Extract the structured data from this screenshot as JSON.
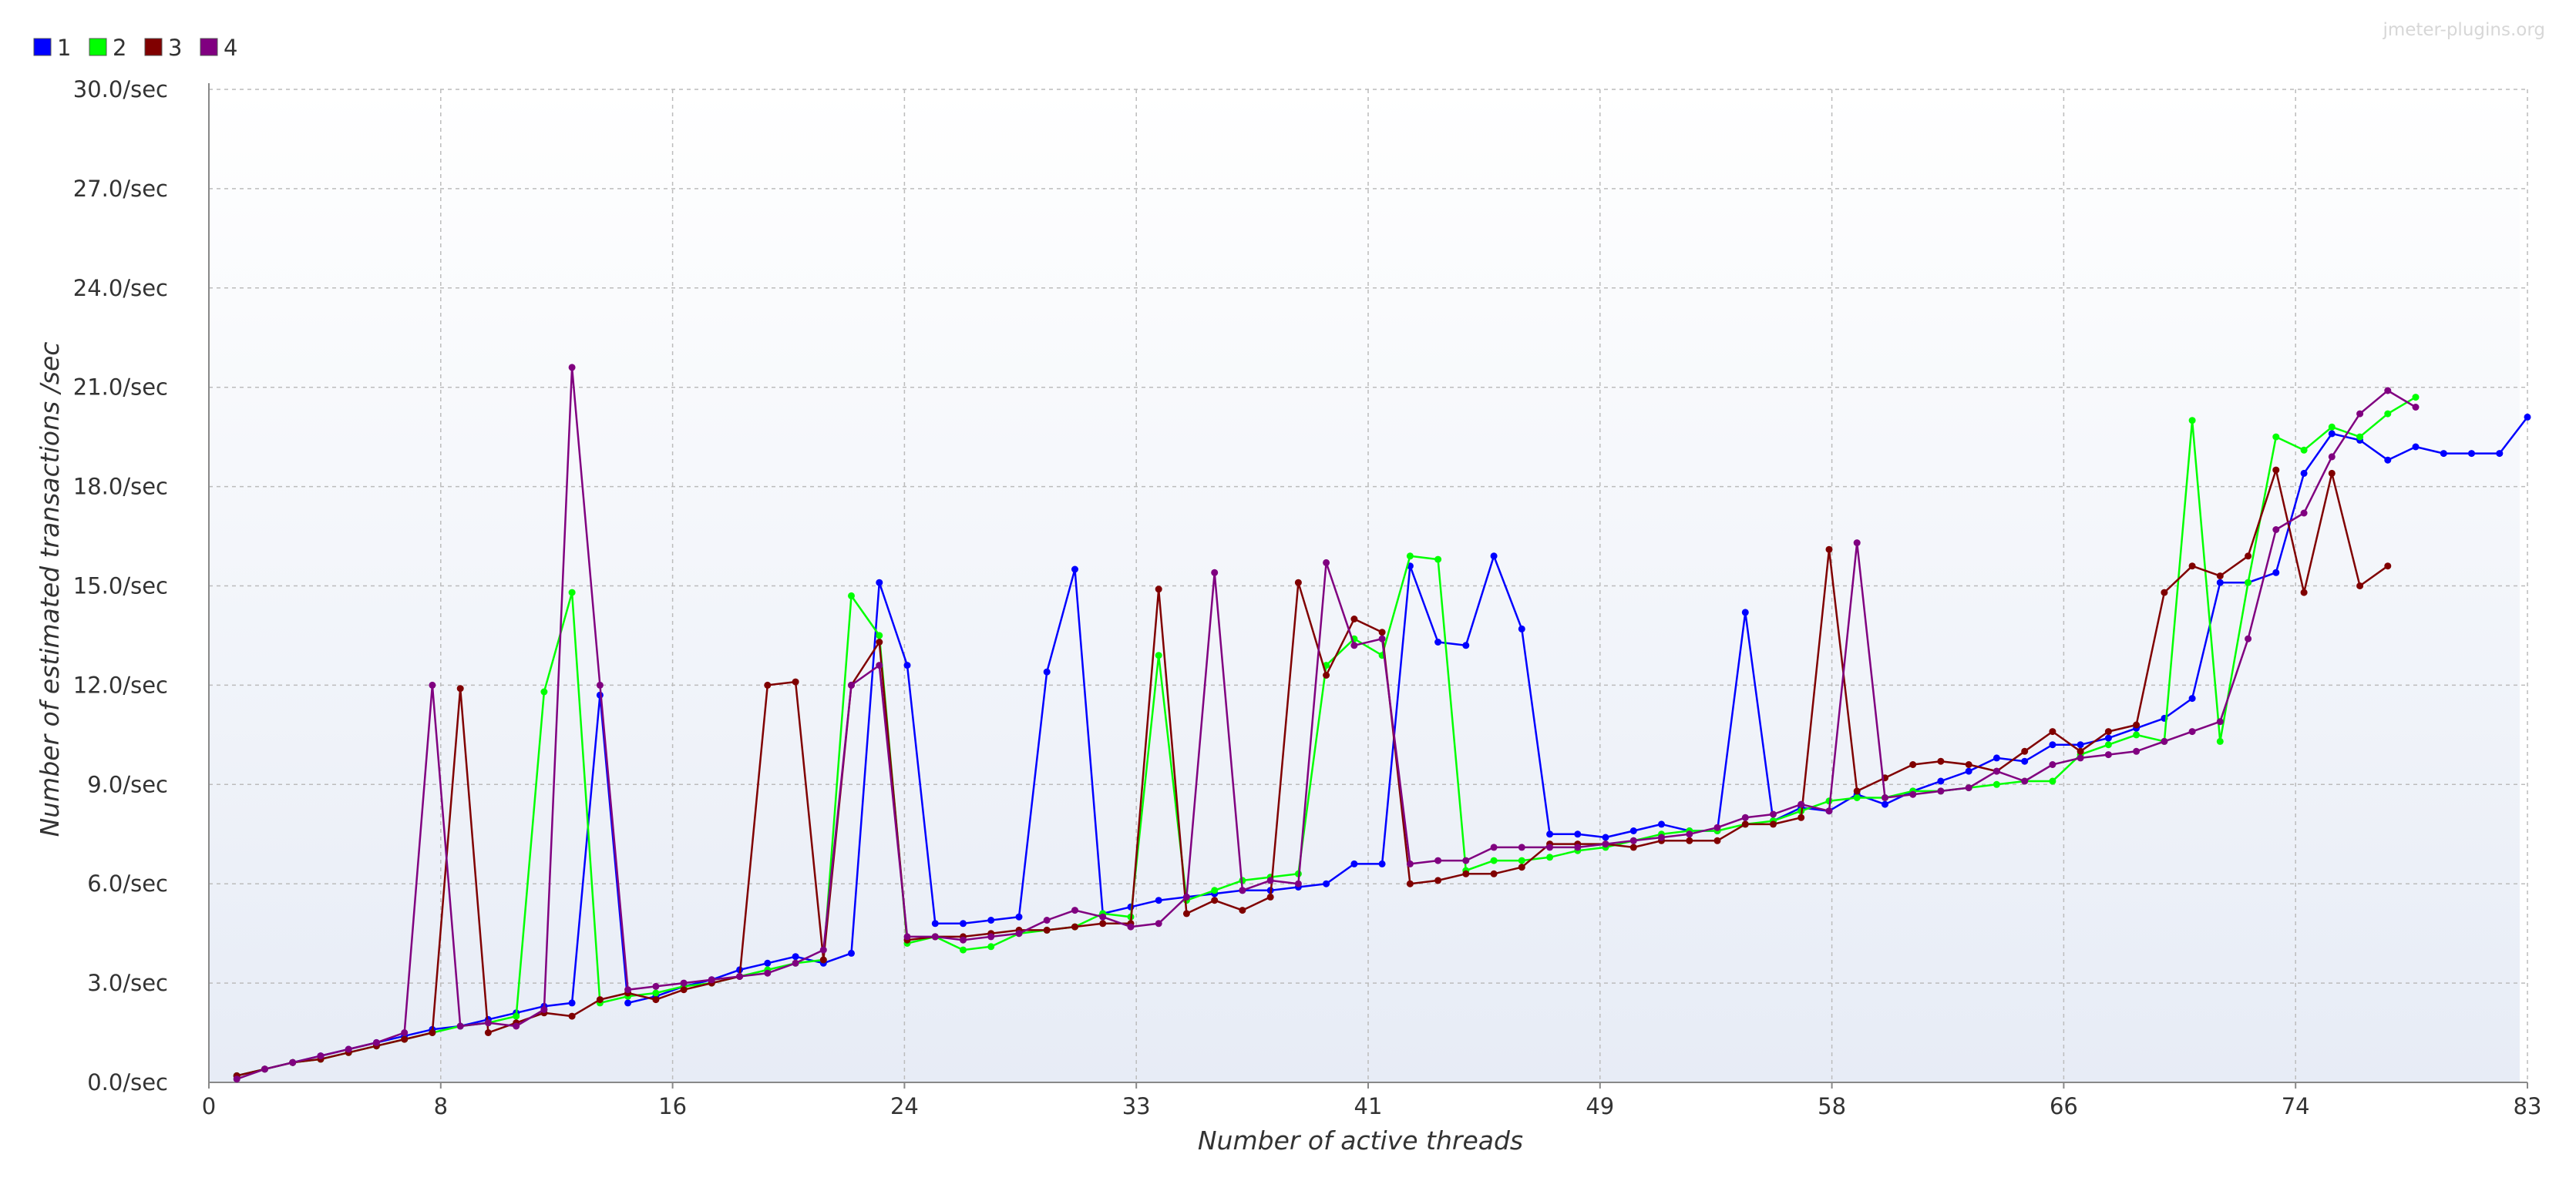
{
  "watermark": "jmeter-plugins.org",
  "chart_data": {
    "type": "line",
    "xlabel": "Number of active threads",
    "ylabel": "Number of estimated transactions /sec",
    "xlim": [
      0,
      83
    ],
    "ylim": [
      0,
      30
    ],
    "x_ticks": [
      "0",
      "8",
      "16",
      "24",
      "33",
      "41",
      "49",
      "58",
      "66",
      "74",
      "83"
    ],
    "y_ticks": [
      "0.0/sec",
      "3.0/sec",
      "6.0/sec",
      "9.0/sec",
      "12.0/sec",
      "15.0/sec",
      "18.0/sec",
      "21.0/sec",
      "24.0/sec",
      "27.0/sec",
      "30.0/sec"
    ],
    "grid": true,
    "legend_position": "top-left",
    "series": [
      {
        "name": "1",
        "color": "#0000ff",
        "points": [
          [
            1,
            0.2
          ],
          [
            2,
            0.4
          ],
          [
            3,
            0.6
          ],
          [
            4,
            0.8
          ],
          [
            5,
            1.0
          ],
          [
            6,
            1.2
          ],
          [
            7,
            1.4
          ],
          [
            8,
            1.6
          ],
          [
            9,
            1.7
          ],
          [
            10,
            1.9
          ],
          [
            11,
            2.1
          ],
          [
            12,
            2.3
          ],
          [
            13,
            2.4
          ],
          [
            14,
            11.7
          ],
          [
            15,
            2.4
          ],
          [
            16,
            2.6
          ],
          [
            17,
            2.9
          ],
          [
            18,
            3.1
          ],
          [
            19,
            3.4
          ],
          [
            20,
            3.6
          ],
          [
            21,
            3.8
          ],
          [
            22,
            3.6
          ],
          [
            23,
            3.9
          ],
          [
            24,
            15.1
          ],
          [
            25,
            12.6
          ],
          [
            26,
            4.8
          ],
          [
            27,
            4.8
          ],
          [
            28,
            4.9
          ],
          [
            29,
            5.0
          ],
          [
            30,
            12.4
          ],
          [
            31,
            15.5
          ],
          [
            32,
            5.1
          ],
          [
            33,
            5.3
          ],
          [
            34,
            5.5
          ],
          [
            35,
            5.6
          ],
          [
            36,
            5.7
          ],
          [
            37,
            5.8
          ],
          [
            38,
            5.8
          ],
          [
            39,
            5.9
          ],
          [
            40,
            6.0
          ],
          [
            41,
            6.6
          ],
          [
            42,
            6.6
          ],
          [
            43,
            15.6
          ],
          [
            44,
            13.3
          ],
          [
            45,
            13.2
          ],
          [
            46,
            15.9
          ],
          [
            47,
            13.7
          ],
          [
            48,
            7.5
          ],
          [
            49,
            7.5
          ],
          [
            50,
            7.4
          ],
          [
            51,
            7.6
          ],
          [
            52,
            7.8
          ],
          [
            53,
            7.6
          ],
          [
            54,
            7.6
          ],
          [
            55,
            14.2
          ],
          [
            56,
            7.9
          ],
          [
            57,
            8.3
          ],
          [
            58,
            8.2
          ],
          [
            59,
            8.7
          ],
          [
            60,
            8.4
          ],
          [
            61,
            8.8
          ],
          [
            62,
            9.1
          ],
          [
            63,
            9.4
          ],
          [
            64,
            9.8
          ],
          [
            65,
            9.7
          ],
          [
            66,
            10.2
          ],
          [
            67,
            10.2
          ],
          [
            68,
            10.4
          ],
          [
            69,
            10.7
          ],
          [
            70,
            11.0
          ],
          [
            71,
            11.6
          ],
          [
            72,
            15.1
          ],
          [
            73,
            15.1
          ],
          [
            74,
            15.4
          ],
          [
            75,
            18.4
          ],
          [
            76,
            19.6
          ],
          [
            77,
            19.4
          ],
          [
            78,
            18.8
          ],
          [
            79,
            19.2
          ],
          [
            80,
            19.0
          ],
          [
            81,
            19.0
          ],
          [
            82,
            19.0
          ],
          [
            83,
            20.1
          ]
        ]
      },
      {
        "name": "2",
        "color": "#00ff00",
        "points": [
          [
            1,
            0.2
          ],
          [
            2,
            0.4
          ],
          [
            3,
            0.6
          ],
          [
            4,
            0.7
          ],
          [
            5,
            0.9
          ],
          [
            6,
            1.1
          ],
          [
            7,
            1.3
          ],
          [
            8,
            1.5
          ],
          [
            9,
            1.7
          ],
          [
            10,
            1.8
          ],
          [
            11,
            2.0
          ],
          [
            12,
            11.8
          ],
          [
            13,
            14.8
          ],
          [
            14,
            2.4
          ],
          [
            15,
            2.6
          ],
          [
            16,
            2.7
          ],
          [
            17,
            2.9
          ],
          [
            18,
            3.0
          ],
          [
            19,
            3.2
          ],
          [
            20,
            3.4
          ],
          [
            21,
            3.6
          ],
          [
            22,
            3.7
          ],
          [
            23,
            14.7
          ],
          [
            24,
            13.5
          ],
          [
            25,
            4.2
          ],
          [
            26,
            4.4
          ],
          [
            27,
            4.0
          ],
          [
            28,
            4.1
          ],
          [
            29,
            4.5
          ],
          [
            30,
            4.6
          ],
          [
            31,
            4.7
          ],
          [
            32,
            5.1
          ],
          [
            33,
            5.0
          ],
          [
            34,
            12.9
          ],
          [
            35,
            5.5
          ],
          [
            36,
            5.8
          ],
          [
            37,
            6.1
          ],
          [
            38,
            6.2
          ],
          [
            39,
            6.3
          ],
          [
            40,
            12.6
          ],
          [
            41,
            13.4
          ],
          [
            42,
            12.9
          ],
          [
            43,
            15.9
          ],
          [
            44,
            15.8
          ],
          [
            45,
            6.4
          ],
          [
            46,
            6.7
          ],
          [
            47,
            6.7
          ],
          [
            48,
            6.8
          ],
          [
            49,
            7.0
          ],
          [
            50,
            7.1
          ],
          [
            51,
            7.3
          ],
          [
            52,
            7.5
          ],
          [
            53,
            7.6
          ],
          [
            54,
            7.6
          ],
          [
            55,
            7.8
          ],
          [
            56,
            7.9
          ],
          [
            57,
            8.2
          ],
          [
            58,
            8.5
          ],
          [
            59,
            8.6
          ],
          [
            60,
            8.6
          ],
          [
            61,
            8.8
          ],
          [
            62,
            8.8
          ],
          [
            63,
            8.9
          ],
          [
            64,
            9.0
          ],
          [
            65,
            9.1
          ],
          [
            66,
            9.1
          ],
          [
            67,
            9.9
          ],
          [
            68,
            10.2
          ],
          [
            69,
            10.5
          ],
          [
            70,
            10.3
          ],
          [
            71,
            20.0
          ],
          [
            72,
            10.3
          ],
          [
            73,
            15.1
          ],
          [
            74,
            19.5
          ],
          [
            75,
            19.1
          ],
          [
            76,
            19.8
          ],
          [
            77,
            19.5
          ],
          [
            78,
            20.2
          ],
          [
            79,
            20.7
          ]
        ]
      },
      {
        "name": "3",
        "color": "#800000",
        "points": [
          [
            1,
            0.2
          ],
          [
            2,
            0.4
          ],
          [
            3,
            0.6
          ],
          [
            4,
            0.7
          ],
          [
            5,
            0.9
          ],
          [
            6,
            1.1
          ],
          [
            7,
            1.3
          ],
          [
            8,
            1.5
          ],
          [
            9,
            11.9
          ],
          [
            10,
            1.5
          ],
          [
            11,
            1.8
          ],
          [
            12,
            2.1
          ],
          [
            13,
            2.0
          ],
          [
            14,
            2.5
          ],
          [
            15,
            2.7
          ],
          [
            16,
            2.5
          ],
          [
            17,
            2.8
          ],
          [
            18,
            3.0
          ],
          [
            19,
            3.2
          ],
          [
            20,
            12.0
          ],
          [
            21,
            12.1
          ],
          [
            22,
            3.7
          ],
          [
            23,
            12.0
          ],
          [
            24,
            13.3
          ],
          [
            25,
            4.3
          ],
          [
            26,
            4.4
          ],
          [
            27,
            4.4
          ],
          [
            28,
            4.5
          ],
          [
            29,
            4.6
          ],
          [
            30,
            4.6
          ],
          [
            31,
            4.7
          ],
          [
            32,
            4.8
          ],
          [
            33,
            4.8
          ],
          [
            34,
            14.9
          ],
          [
            35,
            5.1
          ],
          [
            36,
            5.5
          ],
          [
            37,
            5.2
          ],
          [
            38,
            5.6
          ],
          [
            39,
            15.1
          ],
          [
            40,
            12.3
          ],
          [
            41,
            14.0
          ],
          [
            42,
            13.6
          ],
          [
            43,
            6.0
          ],
          [
            44,
            6.1
          ],
          [
            45,
            6.3
          ],
          [
            46,
            6.3
          ],
          [
            47,
            6.5
          ],
          [
            48,
            7.2
          ],
          [
            49,
            7.2
          ],
          [
            50,
            7.2
          ],
          [
            51,
            7.1
          ],
          [
            52,
            7.3
          ],
          [
            53,
            7.3
          ],
          [
            54,
            7.3
          ],
          [
            55,
            7.8
          ],
          [
            56,
            7.8
          ],
          [
            57,
            8.0
          ],
          [
            58,
            16.1
          ],
          [
            59,
            8.8
          ],
          [
            60,
            9.2
          ],
          [
            61,
            9.6
          ],
          [
            62,
            9.7
          ],
          [
            63,
            9.6
          ],
          [
            64,
            9.4
          ],
          [
            65,
            10.0
          ],
          [
            66,
            10.6
          ],
          [
            67,
            10.0
          ],
          [
            68,
            10.6
          ],
          [
            69,
            10.8
          ],
          [
            70,
            14.8
          ],
          [
            71,
            15.6
          ],
          [
            72,
            15.3
          ],
          [
            73,
            15.9
          ],
          [
            74,
            18.5
          ],
          [
            75,
            14.8
          ],
          [
            76,
            18.4
          ],
          [
            77,
            15.0
          ],
          [
            78,
            15.6
          ]
        ]
      },
      {
        "name": "4",
        "color": "#800080",
        "points": [
          [
            1,
            0.1
          ],
          [
            2,
            0.4
          ],
          [
            3,
            0.6
          ],
          [
            4,
            0.8
          ],
          [
            5,
            1.0
          ],
          [
            6,
            1.2
          ],
          [
            7,
            1.5
          ],
          [
            8,
            12.0
          ],
          [
            9,
            1.7
          ],
          [
            10,
            1.8
          ],
          [
            11,
            1.7
          ],
          [
            12,
            2.2
          ],
          [
            13,
            21.6
          ],
          [
            14,
            12.0
          ],
          [
            15,
            2.8
          ],
          [
            16,
            2.9
          ],
          [
            17,
            3.0
          ],
          [
            18,
            3.1
          ],
          [
            19,
            3.2
          ],
          [
            20,
            3.3
          ],
          [
            21,
            3.6
          ],
          [
            22,
            4.0
          ],
          [
            23,
            12.0
          ],
          [
            24,
            12.6
          ],
          [
            25,
            4.4
          ],
          [
            26,
            4.4
          ],
          [
            27,
            4.3
          ],
          [
            28,
            4.4
          ],
          [
            29,
            4.5
          ],
          [
            30,
            4.9
          ],
          [
            31,
            5.2
          ],
          [
            32,
            5.0
          ],
          [
            33,
            4.7
          ],
          [
            34,
            4.8
          ],
          [
            35,
            5.6
          ],
          [
            36,
            15.4
          ],
          [
            37,
            5.8
          ],
          [
            38,
            6.1
          ],
          [
            39,
            6.0
          ],
          [
            40,
            15.7
          ],
          [
            41,
            13.2
          ],
          [
            42,
            13.4
          ],
          [
            43,
            6.6
          ],
          [
            44,
            6.7
          ],
          [
            45,
            6.7
          ],
          [
            46,
            7.1
          ],
          [
            47,
            7.1
          ],
          [
            48,
            7.1
          ],
          [
            49,
            7.1
          ],
          [
            50,
            7.2
          ],
          [
            51,
            7.3
          ],
          [
            52,
            7.4
          ],
          [
            53,
            7.5
          ],
          [
            54,
            7.7
          ],
          [
            55,
            8.0
          ],
          [
            56,
            8.1
          ],
          [
            57,
            8.4
          ],
          [
            58,
            8.2
          ],
          [
            59,
            16.3
          ],
          [
            60,
            8.6
          ],
          [
            61,
            8.7
          ],
          [
            62,
            8.8
          ],
          [
            63,
            8.9
          ],
          [
            64,
            9.4
          ],
          [
            65,
            9.1
          ],
          [
            66,
            9.6
          ],
          [
            67,
            9.8
          ],
          [
            68,
            9.9
          ],
          [
            69,
            10.0
          ],
          [
            70,
            10.3
          ],
          [
            71,
            10.6
          ],
          [
            72,
            10.9
          ],
          [
            73,
            13.4
          ],
          [
            74,
            16.7
          ],
          [
            75,
            17.2
          ],
          [
            76,
            18.9
          ],
          [
            77,
            20.2
          ],
          [
            78,
            20.9
          ],
          [
            79,
            20.4
          ]
        ]
      }
    ]
  }
}
